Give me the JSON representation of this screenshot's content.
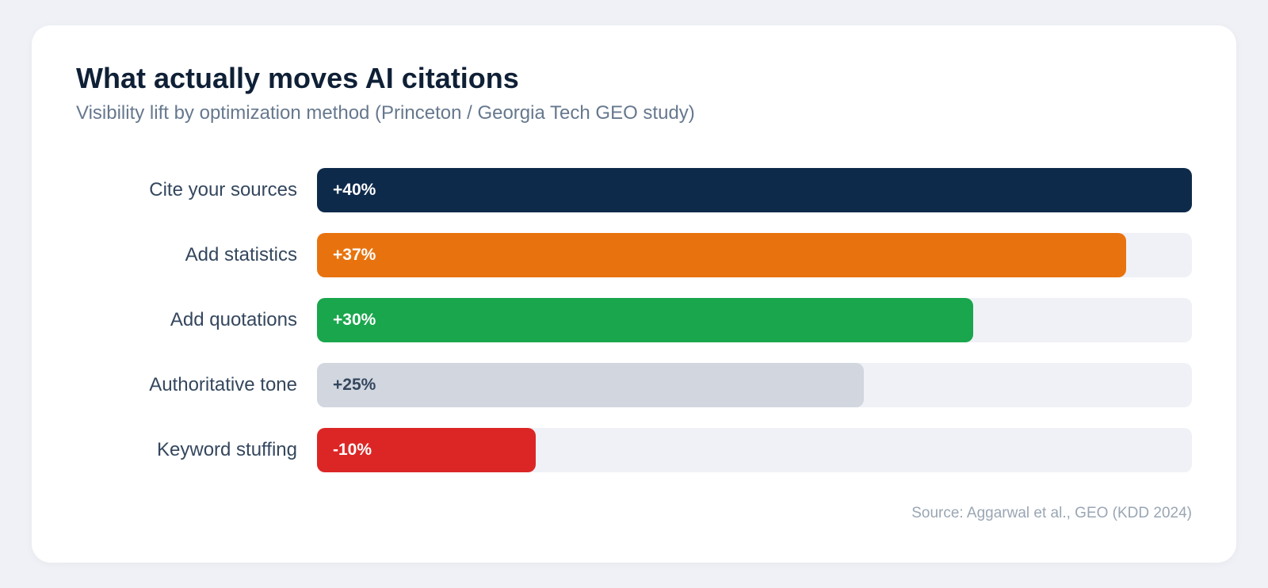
{
  "chart_data": {
    "type": "bar",
    "orientation": "horizontal",
    "title": "What actually moves AI citations",
    "subtitle": "Visibility lift by optimization method (Princeton / Georgia Tech GEO study)",
    "categories": [
      "Cite your sources",
      "Add statistics",
      "Add quotations",
      "Authoritative tone",
      "Keyword stuffing"
    ],
    "values": [
      40,
      37,
      30,
      25,
      -10
    ],
    "data_labels": [
      "+40%",
      "+37%",
      "+30%",
      "+25%",
      "-10%"
    ],
    "bar_colors": [
      "#0e2a4b",
      "#e8730e",
      "#19a64c",
      "#d1d6df",
      "#dc2626"
    ],
    "label_colors": [
      "#ffffff",
      "#ffffff",
      "#ffffff",
      "#34475e",
      "#ffffff"
    ],
    "grid": false,
    "legend": "none",
    "source": "Source: Aggarwal et al., GEO (KDD 2024)"
  }
}
